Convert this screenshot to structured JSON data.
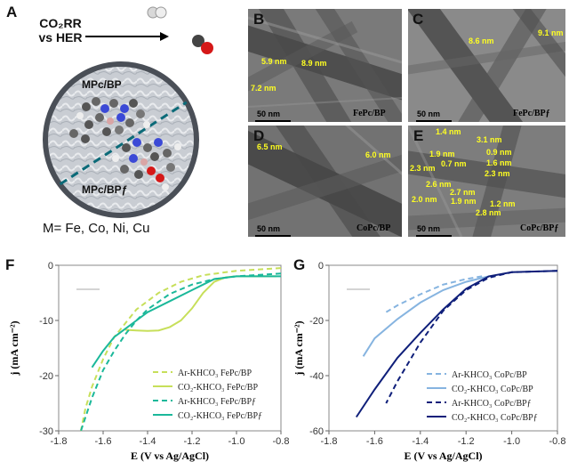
{
  "panel_a": {
    "letter": "A",
    "reaction_line1": "CO₂RR",
    "reaction_line2": "vs HER",
    "products": "H₂ / CO",
    "label_top": "MPc/BP",
    "label_bottom": "MPc/BPƒ",
    "metals": "M= Fe, Co, Ni, Cu"
  },
  "tem_panels": [
    {
      "letter": "B",
      "caption": "FePc/BP",
      "scale": "50 nm",
      "measurements": [
        "5.9 nm",
        "8.9 nm",
        "7.2 nm"
      ]
    },
    {
      "letter": "C",
      "caption": "FePc/BPƒ",
      "scale": "50 nm",
      "measurements": [
        "8.6 nm",
        "9.1 nm"
      ]
    },
    {
      "letter": "D",
      "caption": "CoPc/BP",
      "scale": "50 nm",
      "measurements": [
        "6.5 nm",
        "6.0 nm"
      ]
    },
    {
      "letter": "E",
      "caption": "CoPc/BPƒ",
      "scale": "50 nm",
      "measurements": [
        "1.4 nm",
        "3.1 nm",
        "1.9 nm",
        "0.9 nm",
        "0.7 nm",
        "1.6 nm",
        "2.3 nm",
        "2.3 nm",
        "2.6 nm",
        "2.7 nm",
        "2.0 nm",
        "1.9 nm",
        "1.2 nm",
        "2.8 nm"
      ]
    }
  ],
  "colors": {
    "fe_light": "#c7df5a",
    "fe_teal": "#1bb89a",
    "co_light": "#86b4e0",
    "co_dark": "#0f1f7a"
  },
  "chart_data": [
    {
      "panel": "F",
      "type": "line",
      "xlabel": "E (V vs Ag/AgCl)",
      "ylabel": "j (mA cm⁻²)",
      "xlim": [
        -1.8,
        -0.8
      ],
      "ylim": [
        -30,
        0
      ],
      "xticks": [
        "-1.8",
        "-1.6",
        "-1.4",
        "-1.2",
        "-1.0",
        "-0.8"
      ],
      "yticks": [
        "0",
        "-10",
        "-20",
        "-30"
      ],
      "series": [
        {
          "name": "Ar-KHCO₃ FePc/BP",
          "style": "dash",
          "color": "#c7df5a",
          "x": [
            -0.8,
            -1.0,
            -1.15,
            -1.25,
            -1.35,
            -1.45,
            -1.55,
            -1.6,
            -1.65,
            -1.68,
            -1.7
          ],
          "y": [
            -0.5,
            -1.0,
            -1.8,
            -3.0,
            -5.0,
            -8.0,
            -13.0,
            -17.0,
            -22.0,
            -26.0,
            -30.0
          ]
        },
        {
          "name": "CO₂-KHCO₃ FePc/BP",
          "style": "solid",
          "color": "#c7df5a",
          "x": [
            -0.82,
            -1.0,
            -1.05,
            -1.1,
            -1.15,
            -1.2,
            -1.25,
            -1.3,
            -1.35,
            -1.4,
            -1.45,
            -1.5
          ],
          "y": [
            -2.0,
            -2.0,
            -2.2,
            -3.0,
            -5.0,
            -7.8,
            -10.0,
            -11.2,
            -11.8,
            -11.9,
            -11.8,
            -11.7
          ]
        },
        {
          "name": "Ar-KHCO₃ FePc/BPƒ",
          "style": "dash",
          "color": "#1bb89a",
          "x": [
            -0.8,
            -1.0,
            -1.1,
            -1.2,
            -1.3,
            -1.4,
            -1.45,
            -1.5,
            -1.55,
            -1.6,
            -1.65,
            -1.7
          ],
          "y": [
            -1.5,
            -2.0,
            -2.5,
            -3.5,
            -5.2,
            -8.0,
            -10.0,
            -12.5,
            -15.5,
            -19.0,
            -24.0,
            -30.0
          ]
        },
        {
          "name": "CO₂-KHCO₃ FePc/BPƒ",
          "style": "solid",
          "color": "#1bb89a",
          "x": [
            -0.8,
            -1.0,
            -1.1,
            -1.15,
            -1.2,
            -1.3,
            -1.4,
            -1.45,
            -1.5,
            -1.55,
            -1.6,
            -1.65
          ],
          "y": [
            -2.0,
            -2.0,
            -2.5,
            -3.5,
            -4.5,
            -6.5,
            -8.5,
            -10.0,
            -11.5,
            -13.0,
            -15.5,
            -18.5
          ]
        }
      ]
    },
    {
      "panel": "G",
      "type": "line",
      "xlabel": "E (V vs Ag/AgCl)",
      "ylabel": "j (mA cm⁻²)",
      "xlim": [
        -1.8,
        -0.8
      ],
      "ylim": [
        -60,
        0
      ],
      "xticks": [
        "-1.8",
        "-1.6",
        "-1.4",
        "-1.2",
        "-1.0",
        "-0.8"
      ],
      "yticks": [
        "0",
        "-20",
        "-40",
        "-60"
      ],
      "series": [
        {
          "name": "Ar-KHCO₃ CoPc/BP",
          "style": "dash",
          "color": "#86b4e0",
          "x": [
            -1.13,
            -1.2,
            -1.3,
            -1.4,
            -1.5,
            -1.55
          ],
          "y": [
            -4.0,
            -5.0,
            -7.0,
            -10.5,
            -14.5,
            -17.0
          ]
        },
        {
          "name": "CO₂-KHCO₃ CoPc/BP",
          "style": "solid",
          "color": "#86b4e0",
          "x": [
            -1.1,
            -1.2,
            -1.3,
            -1.4,
            -1.5,
            -1.6,
            -1.65
          ],
          "y": [
            -4.0,
            -6.0,
            -9.0,
            -13.5,
            -19.5,
            -26.5,
            -33.0
          ]
        },
        {
          "name": "Ar-KHCO₃ CoPc/BPƒ",
          "style": "dash",
          "color": "#0f1f7a",
          "x": [
            -0.8,
            -1.0,
            -1.1,
            -1.2,
            -1.3,
            -1.4,
            -1.45,
            -1.5,
            -1.55
          ],
          "y": [
            -2.0,
            -2.5,
            -4.5,
            -9.0,
            -16.5,
            -28.0,
            -35.0,
            -42.0,
            -50.0
          ]
        },
        {
          "name": "CO₂-KHCO₃ CoPc/BPƒ",
          "style": "solid",
          "color": "#0f1f7a",
          "x": [
            -0.8,
            -1.0,
            -1.1,
            -1.2,
            -1.3,
            -1.4,
            -1.5,
            -1.6,
            -1.68
          ],
          "y": [
            -2.0,
            -2.5,
            -4.0,
            -8.5,
            -16.0,
            -24.5,
            -33.5,
            -45.0,
            -55.0
          ]
        }
      ]
    }
  ]
}
